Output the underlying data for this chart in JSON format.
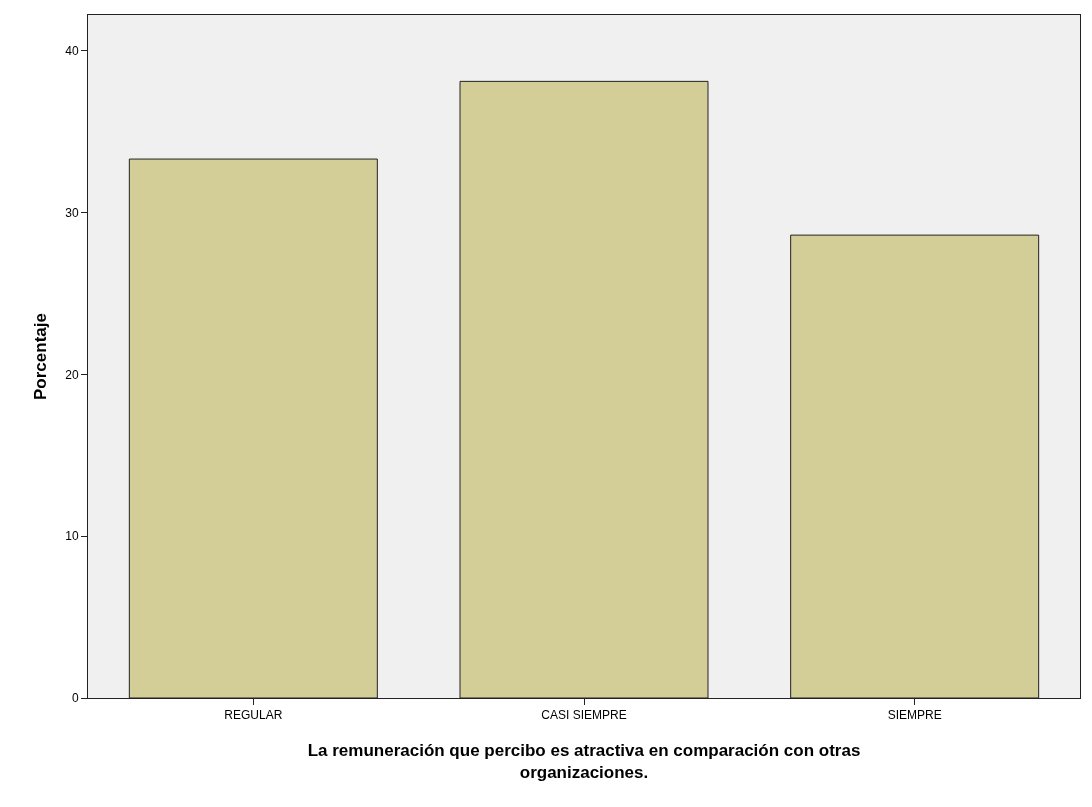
{
  "chart_data": {
    "type": "bar",
    "xlabel": "La remuneración que percibo es atractiva en comparación con otras organizaciones.",
    "ylabel": "Porcentaje",
    "categories": [
      "REGULAR",
      "CASI SIEMPRE",
      "SIEMPRE"
    ],
    "values": [
      33.3,
      38.1,
      28.6
    ],
    "color": "#d3ce97",
    "ylim": [
      0,
      42.2
    ],
    "yticks": [
      0,
      10,
      20,
      30,
      40
    ],
    "grid": false
  }
}
